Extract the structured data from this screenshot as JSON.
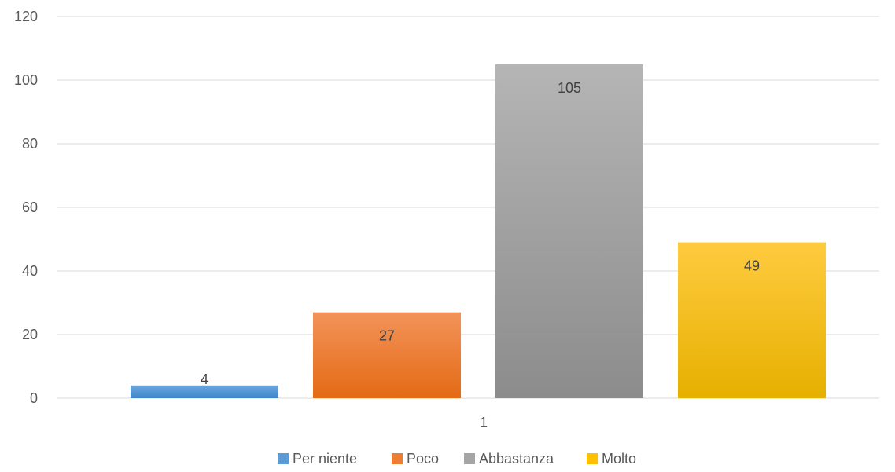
{
  "chart_data": {
    "type": "bar",
    "categories": [
      "1"
    ],
    "series": [
      {
        "name": "Per niente",
        "values": [
          4
        ],
        "color": "#5b9bd5",
        "gradient_top": "#6aa6de",
        "gradient_bottom": "#3f86cc"
      },
      {
        "name": "Poco",
        "values": [
          27
        ],
        "color": "#ed7d31",
        "gradient_top": "#f3935a",
        "gradient_bottom": "#e46a14"
      },
      {
        "name": "Abbastanza",
        "values": [
          105
        ],
        "color": "#a5a5a5",
        "gradient_top": "#b5b5b5",
        "gradient_bottom": "#8c8c8c"
      },
      {
        "name": "Molto",
        "values": [
          49
        ],
        "color": "#ffc000",
        "gradient_top": "#ffcb3f",
        "gradient_bottom": "#e6b000"
      }
    ],
    "data_labels": [
      "4",
      "27",
      "105",
      "49"
    ],
    "y_ticks": [
      "0",
      "20",
      "40",
      "60",
      "80",
      "100",
      "120"
    ],
    "ylim": [
      0,
      120
    ],
    "title": "",
    "xlabel": "",
    "ylabel": "",
    "grid": true,
    "legend_position": "bottom",
    "gridline_color": "#d9d9d9",
    "text_color": "#595959"
  }
}
